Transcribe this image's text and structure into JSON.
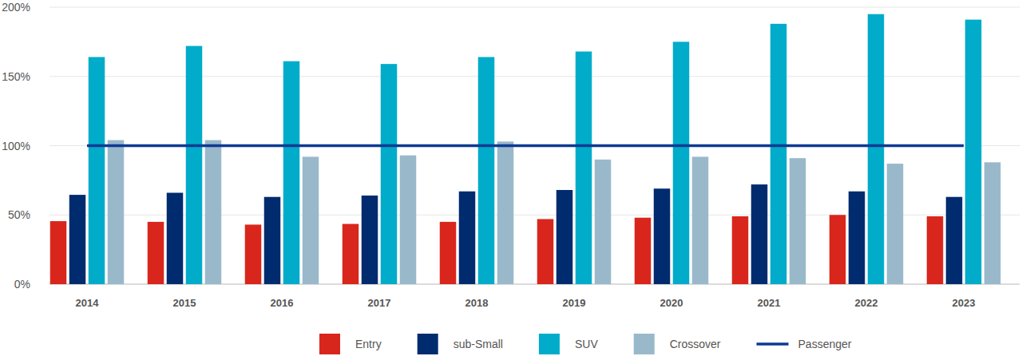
{
  "chart_data": {
    "type": "bar",
    "categories": [
      "2014",
      "2015",
      "2016",
      "2017",
      "2018",
      "2019",
      "2020",
      "2021",
      "2022",
      "2023"
    ],
    "series": [
      {
        "name": "Entry",
        "color": "#d9261c",
        "values": [
          45.5,
          45,
          43,
          43.5,
          45,
          47,
          48,
          49,
          50,
          49
        ]
      },
      {
        "name": "sub-Small",
        "color": "#002b6f",
        "values": [
          64.5,
          66,
          63,
          64,
          67,
          68,
          69,
          72,
          67,
          63
        ]
      },
      {
        "name": "SUV",
        "color": "#00acc9",
        "values": [
          164,
          172,
          161,
          159,
          164,
          168,
          175,
          188,
          195,
          191
        ]
      },
      {
        "name": "Crossover",
        "color": "#99b9cb",
        "values": [
          104,
          104,
          92,
          93,
          103,
          90,
          92,
          91,
          87,
          88
        ]
      },
      {
        "name": "Passenger",
        "color": "#0e3a93",
        "type": "line",
        "values": [
          100,
          100,
          100,
          100,
          100,
          100,
          100,
          100,
          100,
          100
        ]
      }
    ],
    "ylim": [
      0,
      200
    ],
    "yticks": [
      {
        "value": 0,
        "label": "0%"
      },
      {
        "value": 50,
        "label": "50%"
      },
      {
        "value": 100,
        "label": "100%"
      },
      {
        "value": 150,
        "label": "150%"
      },
      {
        "value": 200,
        "label": "200%"
      }
    ],
    "grid": true,
    "legend": "bottom"
  }
}
